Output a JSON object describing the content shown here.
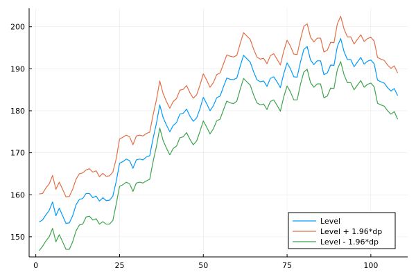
{
  "chart_data": {
    "type": "line",
    "xlim": [
      -2,
      111
    ],
    "ylim": [
      145.2,
      204.4
    ],
    "x_ticks": [
      0,
      25,
      50,
      75,
      100
    ],
    "y_ticks": [
      150,
      160,
      170,
      180,
      190,
      200
    ],
    "x_tick_labels": [
      "0",
      "25",
      "50",
      "75",
      "100"
    ],
    "y_tick_labels": [
      "150",
      "160",
      "170",
      "180",
      "190",
      "200"
    ],
    "grid": true,
    "legend_position": "bottom-right",
    "series": [
      {
        "name": "Level",
        "color": "#009AFA",
        "x": [
          1,
          2,
          3,
          4,
          5,
          6,
          7,
          8,
          9,
          10,
          11,
          12,
          13,
          14,
          15,
          16,
          17,
          18,
          19,
          20,
          21,
          22,
          23,
          24,
          25,
          26,
          27,
          28,
          29,
          30,
          31,
          32,
          33,
          34,
          35,
          36,
          37,
          38,
          39,
          40,
          41,
          42,
          43,
          44,
          45,
          46,
          47,
          48,
          49,
          50,
          51,
          52,
          53,
          54,
          55,
          56,
          57,
          58,
          59,
          60,
          61,
          62,
          63,
          64,
          65,
          66,
          67,
          68,
          69,
          70,
          71,
          72,
          73,
          74,
          75,
          76,
          77,
          78,
          79,
          80,
          81,
          82,
          83,
          84,
          85,
          86,
          87,
          88,
          89,
          90,
          91,
          92,
          93,
          94,
          95,
          96,
          97,
          98,
          99,
          100,
          101,
          102,
          103,
          104,
          105,
          106,
          107,
          108
        ],
        "y": [
          153.5,
          154.0,
          155.2,
          156.3,
          158.3,
          155.0,
          156.8,
          155.0,
          153.2,
          153.3,
          155.0,
          157.6,
          158.9,
          159.1,
          160.3,
          160.3,
          159.3,
          159.7,
          158.5,
          159.3,
          158.6,
          158.7,
          159.7,
          163.2,
          167.5,
          167.9,
          168.5,
          168.1,
          166.3,
          168.3,
          168.5,
          168.3,
          169.0,
          169.3,
          173.4,
          177.0,
          181.4,
          178.4,
          176.6,
          175.0,
          176.5,
          177.2,
          179.2,
          179.4,
          180.4,
          178.7,
          177.5,
          178.3,
          180.5,
          183.2,
          181.7,
          180.0,
          181.2,
          183.1,
          183.5,
          185.7,
          187.8,
          187.5,
          187.4,
          187.8,
          190.6,
          193.2,
          192.4,
          191.6,
          189.3,
          187.4,
          186.9,
          187.1,
          185.8,
          187.7,
          188.1,
          186.9,
          185.5,
          188.8,
          191.4,
          190.0,
          188.1,
          188.0,
          191.6,
          194.6,
          195.3,
          192.1,
          191.0,
          191.9,
          191.9,
          188.6,
          189.0,
          190.9,
          190.8,
          195.3,
          197.2,
          194.1,
          192.2,
          192.2,
          190.5,
          191.6,
          192.7,
          191.1,
          191.8,
          192.1,
          191.2,
          187.3,
          186.9,
          186.6,
          185.5,
          184.7,
          185.3,
          183.6
        ]
      },
      {
        "name": "Level + 1.96*dp",
        "color": "#E26F46",
        "x": [
          1,
          2,
          3,
          4,
          5,
          6,
          7,
          8,
          9,
          10,
          11,
          12,
          13,
          14,
          15,
          16,
          17,
          18,
          19,
          20,
          21,
          22,
          23,
          24,
          25,
          26,
          27,
          28,
          29,
          30,
          31,
          32,
          33,
          34,
          35,
          36,
          37,
          38,
          39,
          40,
          41,
          42,
          43,
          44,
          45,
          46,
          47,
          48,
          49,
          50,
          51,
          52,
          53,
          54,
          55,
          56,
          57,
          58,
          59,
          60,
          61,
          62,
          63,
          64,
          65,
          66,
          67,
          68,
          69,
          70,
          71,
          72,
          73,
          74,
          75,
          76,
          77,
          78,
          79,
          80,
          81,
          82,
          83,
          84,
          85,
          86,
          87,
          88,
          89,
          90,
          91,
          92,
          93,
          94,
          95,
          96,
          97,
          98,
          99,
          100,
          101,
          102,
          103,
          104,
          105,
          106,
          107,
          108
        ],
        "y": [
          160.2,
          160.3,
          161.6,
          162.6,
          164.6,
          161.3,
          163.0,
          161.3,
          159.5,
          159.6,
          161.3,
          163.7,
          165.0,
          165.2,
          165.9,
          166.2,
          165.4,
          165.7,
          164.3,
          165.1,
          164.4,
          164.5,
          165.4,
          168.6,
          173.3,
          173.7,
          174.2,
          173.8,
          171.9,
          174.0,
          174.2,
          174.0,
          174.6,
          174.9,
          179.0,
          182.6,
          187.1,
          184.1,
          182.2,
          180.6,
          182.2,
          182.9,
          184.9,
          185.1,
          186.0,
          184.3,
          183.0,
          183.8,
          186.1,
          188.8,
          187.3,
          185.6,
          186.7,
          188.6,
          189.0,
          191.1,
          193.3,
          193.0,
          192.8,
          193.2,
          196.0,
          198.6,
          197.8,
          197.0,
          194.7,
          192.8,
          192.3,
          192.5,
          191.2,
          193.1,
          193.6,
          192.3,
          190.9,
          194.2,
          196.8,
          195.4,
          193.5,
          193.4,
          197.0,
          200.1,
          200.7,
          197.5,
          196.4,
          197.3,
          197.3,
          194.0,
          194.4,
          196.3,
          196.2,
          200.7,
          202.5,
          199.5,
          197.6,
          197.6,
          195.9,
          197.0,
          198.1,
          196.5,
          197.2,
          197.5,
          196.6,
          192.7,
          192.3,
          192.0,
          190.9,
          190.1,
          190.7,
          189.0
        ]
      },
      {
        "name": "Level - 1.96*dp",
        "color": "#3DA44D",
        "x": [
          1,
          2,
          3,
          4,
          5,
          6,
          7,
          8,
          9,
          10,
          11,
          12,
          13,
          14,
          15,
          16,
          17,
          18,
          19,
          20,
          21,
          22,
          23,
          24,
          25,
          26,
          27,
          28,
          29,
          30,
          31,
          32,
          33,
          34,
          35,
          36,
          37,
          38,
          39,
          40,
          41,
          42,
          43,
          44,
          45,
          46,
          47,
          48,
          49,
          50,
          51,
          52,
          53,
          54,
          55,
          56,
          57,
          58,
          59,
          60,
          61,
          62,
          63,
          64,
          65,
          66,
          67,
          68,
          69,
          70,
          71,
          72,
          73,
          74,
          75,
          76,
          77,
          78,
          79,
          80,
          81,
          82,
          83,
          84,
          85,
          86,
          87,
          88,
          89,
          90,
          91,
          92,
          93,
          94,
          95,
          96,
          97,
          98,
          99,
          100,
          101,
          102,
          103,
          104,
          105,
          106,
          107,
          108
        ],
        "y": [
          146.7,
          147.7,
          149.0,
          150.0,
          152.0,
          148.8,
          150.5,
          148.8,
          147.0,
          147.0,
          148.8,
          151.4,
          152.8,
          153.0,
          154.7,
          154.9,
          154.0,
          154.3,
          153.0,
          153.6,
          153.0,
          153.0,
          153.9,
          157.8,
          162.0,
          162.4,
          163.0,
          162.6,
          160.8,
          162.8,
          163.0,
          162.8,
          163.3,
          163.7,
          167.9,
          171.5,
          175.9,
          172.9,
          171.1,
          169.5,
          171.0,
          171.6,
          173.6,
          173.8,
          174.8,
          173.2,
          171.9,
          172.8,
          175.1,
          177.6,
          176.1,
          174.5,
          175.7,
          177.6,
          178.0,
          180.2,
          182.3,
          181.9,
          181.7,
          182.3,
          185.1,
          187.7,
          186.9,
          186.1,
          183.8,
          181.9,
          181.4,
          181.6,
          180.3,
          182.2,
          182.6,
          181.3,
          179.9,
          183.3,
          185.9,
          184.5,
          182.6,
          182.6,
          186.3,
          189.2,
          189.9,
          186.7,
          185.6,
          186.4,
          186.4,
          183.1,
          183.5,
          185.4,
          185.3,
          189.8,
          191.7,
          188.6,
          186.7,
          186.7,
          185.0,
          186.1,
          187.2,
          185.6,
          186.3,
          186.6,
          185.7,
          181.8,
          181.4,
          181.1,
          180.0,
          179.2,
          179.8,
          178.0
        ]
      }
    ]
  }
}
